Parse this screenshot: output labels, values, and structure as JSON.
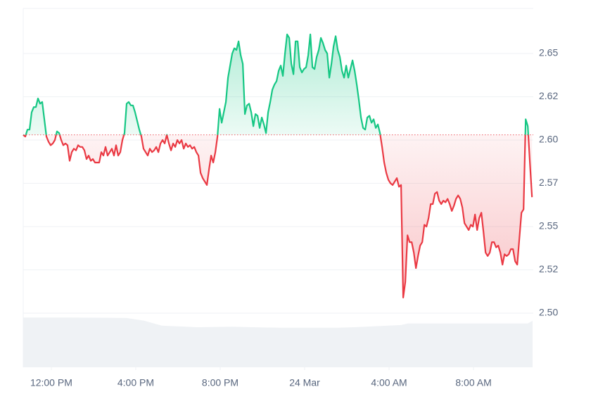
{
  "chart_data": {
    "type": "line",
    "x": [
      10.67,
      10.77,
      10.87,
      10.97,
      11.07,
      11.17,
      11.27,
      11.37,
      11.47,
      11.57,
      11.67,
      11.77,
      11.87,
      11.97,
      12.07,
      12.17,
      12.27,
      12.37,
      12.47,
      12.57,
      12.67,
      12.77,
      12.87,
      12.97,
      13.07,
      13.17,
      13.27,
      13.37,
      13.47,
      13.57,
      13.67,
      13.77,
      13.87,
      13.97,
      14.07,
      14.17,
      14.27,
      14.37,
      14.47,
      14.57,
      14.67,
      14.77,
      14.87,
      14.97,
      15.07,
      15.17,
      15.27,
      15.37,
      15.47,
      15.57,
      15.67,
      15.77,
      15.87,
      15.97,
      16.07,
      16.17,
      16.27,
      16.37,
      16.47,
      16.57,
      16.67,
      16.77,
      16.87,
      16.97,
      17.07,
      17.17,
      17.27,
      17.37,
      17.47,
      17.57,
      17.67,
      17.77,
      17.87,
      17.97,
      18.07,
      18.17,
      18.27,
      18.37,
      18.47,
      18.57,
      18.67,
      18.77,
      18.87,
      18.97,
      19.07,
      19.17,
      19.27,
      19.37,
      19.47,
      19.57,
      19.67,
      19.77,
      19.87,
      19.97,
      20.07,
      20.17,
      20.27,
      20.37,
      20.47,
      20.57,
      20.67,
      20.77,
      20.87,
      20.97,
      21.07,
      21.17,
      21.27,
      21.37,
      21.47,
      21.57,
      21.67,
      21.77,
      21.87,
      21.97,
      22.07,
      22.17,
      22.27,
      22.37,
      22.47,
      22.57,
      22.67,
      22.77,
      22.87,
      22.97,
      23.07,
      23.17,
      23.27,
      23.37,
      23.47,
      23.57,
      23.67,
      23.77,
      23.87,
      23.97,
      24.07,
      24.17,
      24.27,
      24.37,
      24.47,
      24.57,
      24.67,
      24.77,
      24.87,
      24.97,
      25.07,
      25.17,
      25.27,
      25.37,
      25.47,
      25.57,
      25.67,
      25.77,
      25.87,
      25.97,
      26.07,
      26.17,
      26.27,
      26.37,
      26.47,
      26.57,
      26.67,
      26.77,
      26.87,
      26.97,
      27.07,
      27.17,
      27.27,
      27.37,
      27.47,
      27.57,
      27.67,
      27.77,
      27.87,
      27.97,
      28.07,
      28.17,
      28.27,
      28.37,
      28.47,
      28.57,
      28.67,
      28.77,
      28.87,
      28.97,
      29.07,
      29.17,
      29.27,
      29.37,
      29.47,
      29.57,
      29.67,
      29.77,
      29.87,
      29.97,
      30.07,
      30.17,
      30.27,
      30.37,
      30.47,
      30.57,
      30.67,
      30.77,
      30.87,
      30.97,
      31.07,
      31.17,
      31.27,
      31.37,
      31.47,
      31.57,
      31.67,
      31.77,
      31.87,
      31.97,
      32.07,
      32.17,
      32.27,
      32.37,
      32.47,
      32.57,
      32.67,
      32.77,
      32.87,
      32.97,
      33.07,
      33.17,
      33.27,
      33.37,
      33.47,
      33.57,
      33.67,
      33.77,
      33.87,
      33.97,
      34.07,
      34.17,
      34.27,
      34.37,
      34.47,
      34.57,
      34.67,
      34.77
    ],
    "values": [
      2.603,
      2.602,
      2.606,
      2.606,
      2.616,
      2.619,
      2.619,
      2.624,
      2.621,
      2.622,
      2.612,
      2.602,
      2.599,
      2.597,
      2.598,
      2.6,
      2.605,
      2.604,
      2.6,
      2.597,
      2.598,
      2.597,
      2.588,
      2.593,
      2.595,
      2.594,
      2.597,
      2.596,
      2.596,
      2.594,
      2.589,
      2.591,
      2.588,
      2.589,
      2.587,
      2.587,
      2.587,
      2.593,
      2.591,
      2.596,
      2.591,
      2.593,
      2.595,
      2.591,
      2.597,
      2.591,
      2.593,
      2.6,
      2.604,
      2.621,
      2.622,
      2.62,
      2.62,
      2.616,
      2.611,
      2.606,
      2.602,
      2.595,
      2.593,
      2.591,
      2.595,
      2.593,
      2.594,
      2.596,
      2.593,
      2.598,
      2.6,
      2.598,
      2.603,
      2.598,
      2.594,
      2.598,
      2.596,
      2.6,
      2.598,
      2.6,
      2.595,
      2.598,
      2.596,
      2.597,
      2.595,
      2.596,
      2.593,
      2.591,
      2.581,
      2.578,
      2.576,
      2.574,
      2.583,
      2.591,
      2.587,
      2.593,
      2.602,
      2.618,
      2.61,
      2.616,
      2.622,
      2.636,
      2.643,
      2.65,
      2.653,
      2.652,
      2.657,
      2.649,
      2.644,
      2.615,
      2.62,
      2.621,
      2.616,
      2.608,
      2.615,
      2.614,
      2.607,
      2.613,
      2.609,
      2.604,
      2.616,
      2.622,
      2.629,
      2.632,
      2.634,
      2.64,
      2.643,
      2.637,
      2.65,
      2.661,
      2.659,
      2.644,
      2.638,
      2.657,
      2.657,
      2.642,
      2.639,
      2.641,
      2.642,
      2.649,
      2.661,
      2.642,
      2.641,
      2.648,
      2.652,
      2.659,
      2.656,
      2.652,
      2.65,
      2.636,
      2.644,
      2.654,
      2.66,
      2.652,
      2.648,
      2.64,
      2.636,
      2.643,
      2.636,
      2.641,
      2.646,
      2.64,
      2.632,
      2.623,
      2.613,
      2.607,
      2.606,
      2.613,
      2.614,
      2.61,
      2.612,
      2.607,
      2.609,
      2.604,
      2.596,
      2.587,
      2.581,
      2.577,
      2.575,
      2.574,
      2.576,
      2.578,
      2.573,
      2.574,
      2.509,
      2.518,
      2.545,
      2.541,
      2.541,
      2.535,
      2.526,
      2.533,
      2.539,
      2.541,
      2.551,
      2.55,
      2.555,
      2.563,
      2.563,
      2.569,
      2.57,
      2.565,
      2.563,
      2.565,
      2.564,
      2.566,
      2.563,
      2.559,
      2.562,
      2.566,
      2.568,
      2.566,
      2.561,
      2.552,
      2.55,
      2.548,
      2.551,
      2.55,
      2.557,
      2.548,
      2.555,
      2.558,
      2.547,
      2.535,
      2.533,
      2.535,
      2.541,
      2.541,
      2.538,
      2.539,
      2.535,
      2.528,
      2.534,
      2.533,
      2.534,
      2.537,
      2.537,
      2.53,
      2.528,
      2.543,
      2.558,
      2.56,
      2.612,
      2.608,
      2.587,
      2.567
    ],
    "baseline": 2.603,
    "color_above": "#16c784",
    "color_below": "#ea3943",
    "xlim": [
      10.67,
      34.83
    ],
    "ylim": [
      2.4687,
      2.676
    ],
    "xticks": [
      {
        "value": 12,
        "label": "12:00 PM"
      },
      {
        "value": 16,
        "label": "4:00 PM"
      },
      {
        "value": 20,
        "label": "8:00 PM"
      },
      {
        "value": 24,
        "label": "24 Mar"
      },
      {
        "value": 28,
        "label": "4:00 AM"
      },
      {
        "value": 32,
        "label": "8:00 AM"
      }
    ],
    "yticks": [
      {
        "value": 2.5,
        "label": "2.50"
      },
      {
        "value": 2.525,
        "label": "2.52"
      },
      2.55,
      {
        "value": 2.575,
        "label": "2.57"
      },
      {
        "value": 2.6,
        "label": "2.60"
      },
      {
        "value": 2.625,
        "label": "2.62"
      },
      2.65
    ],
    "grid": true,
    "volume": {
      "x": [
        10.67,
        12.9,
        15.57,
        16.4,
        17.23,
        18.9,
        20.57,
        21.57,
        22.9,
        25.57,
        26.9,
        28.57,
        28.9,
        34.57,
        34.8
      ],
      "values": [
        92,
        92,
        91,
        86,
        77,
        74,
        75,
        74,
        73,
        73,
        75,
        78,
        81,
        81,
        86
      ],
      "ylim": [
        0,
        100
      ],
      "color": "#eff2f5"
    }
  }
}
